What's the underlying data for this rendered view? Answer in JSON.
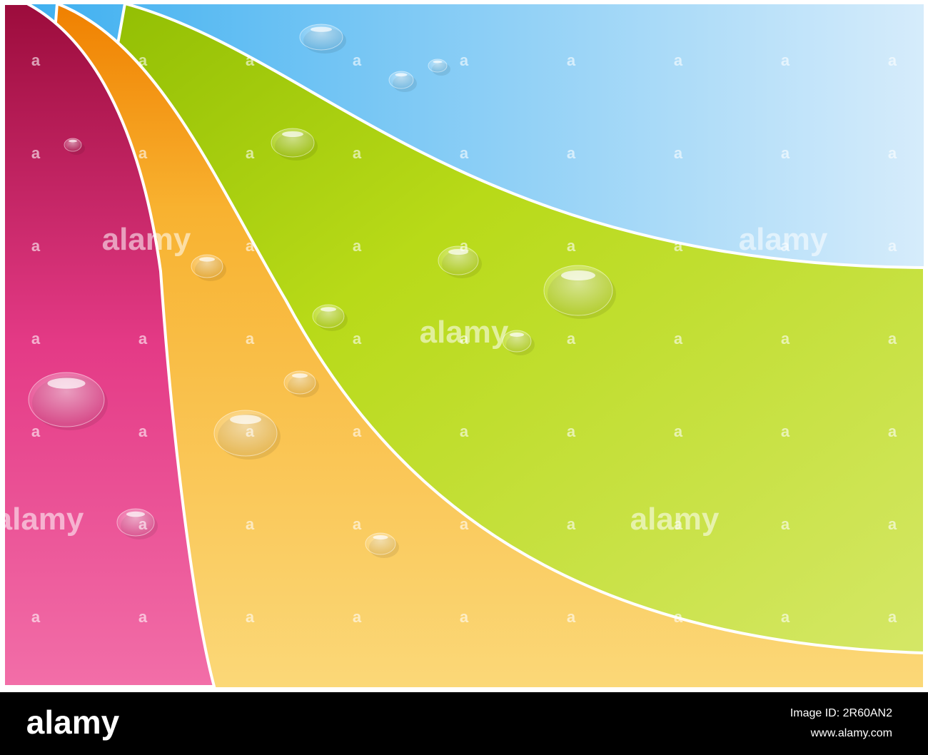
{
  "watermark": "alamy",
  "watermark_mark": "a",
  "footer": {
    "logo": "alamy",
    "image_id": "Image ID: 2R60AN2",
    "url": "www.alamy.com"
  }
}
